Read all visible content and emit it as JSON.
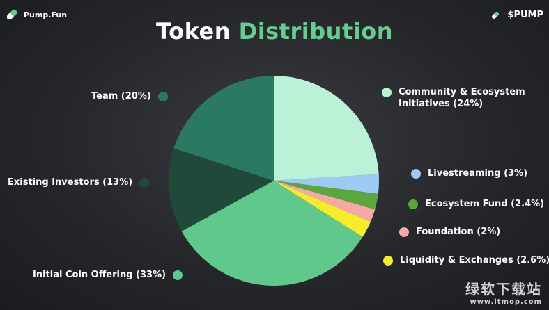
{
  "brand": {
    "name": "Pump.Fun"
  },
  "ticker": {
    "label": "$PUMP"
  },
  "title": {
    "part1": "Token",
    "part2": "Distribution"
  },
  "colors": {
    "accent": "#63cf8f",
    "background": "#2a2b2f"
  },
  "chart_data": {
    "type": "pie",
    "title": "Token Distribution",
    "start_angle_deg": 0,
    "direction": "clockwise",
    "slices": [
      {
        "name": "Community & Ecosystem Initiatives",
        "value": 24,
        "label_lines": [
          "Community & Ecosystem",
          "Initiatives (24%)"
        ],
        "color": "#b9f2d6"
      },
      {
        "name": "Livestreaming",
        "value": 3,
        "label_lines": [
          "Livestreaming (3%)"
        ],
        "color": "#9ecbf5"
      },
      {
        "name": "Ecosystem Fund",
        "value": 2.4,
        "label_lines": [
          "Ecosystem Fund (2.4%)"
        ],
        "color": "#5aa83c"
      },
      {
        "name": "Foundation",
        "value": 2,
        "label_lines": [
          "Foundation (2%)"
        ],
        "color": "#f6a8a6"
      },
      {
        "name": "Liquidity & Exchanges",
        "value": 2.6,
        "label_lines": [
          "Liquidity & Exchanges (2.6%)"
        ],
        "color": "#f7ec2a"
      },
      {
        "name": "Initial Coin Offering",
        "value": 33,
        "label_lines": [
          "Initial Coin Offering (33%)"
        ],
        "color": "#5ec98a"
      },
      {
        "name": "Existing Investors",
        "value": 13,
        "label_lines": [
          "Existing Investors (13%)"
        ],
        "color": "#1f4a3a"
      },
      {
        "name": "Team",
        "value": 20,
        "label_lines": [
          "Team (20%)"
        ],
        "color": "#2a7a63"
      }
    ]
  },
  "watermark": {
    "line1": "绿软下载站",
    "line2": "www.itmop.com"
  }
}
